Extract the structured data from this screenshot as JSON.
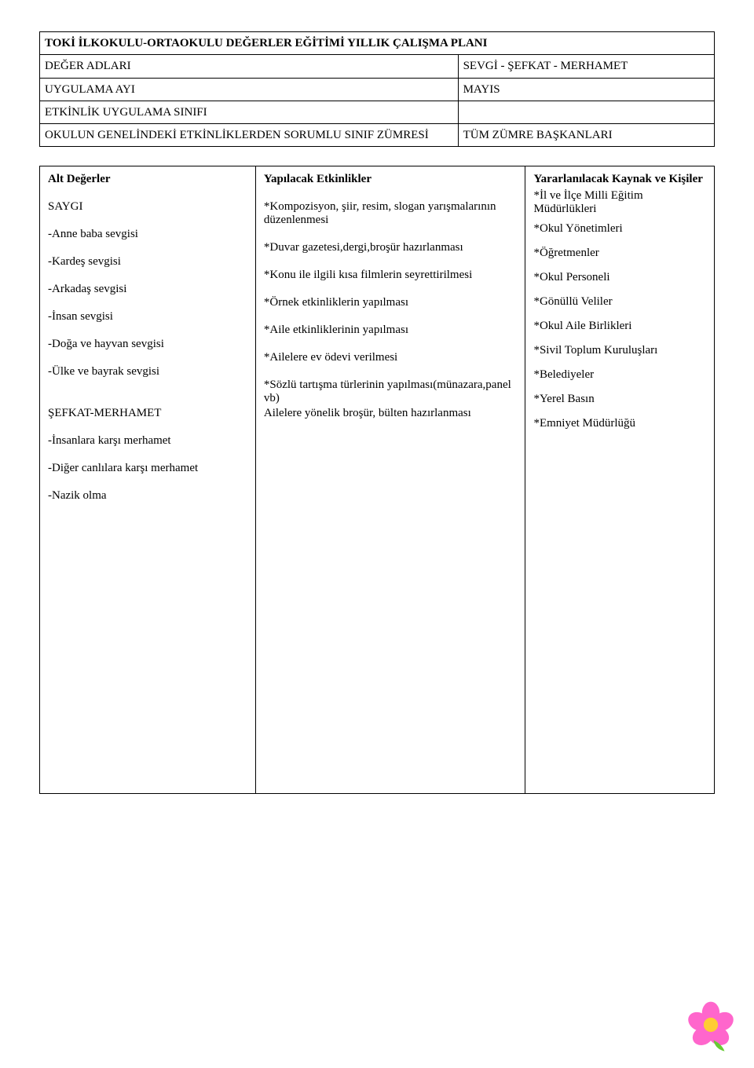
{
  "header": {
    "title": "TOKİ İLKOKULU-ORTAOKULU DEĞERLER EĞİTİMİ YILLIK ÇALIŞMA PLANI",
    "rows": [
      {
        "label": "DEĞER ADLARI",
        "value": "SEVGİ - ŞEFKAT - MERHAMET"
      },
      {
        "label": "UYGULAMA AYI",
        "value": "MAYIS"
      },
      {
        "label": "ETKİNLİK UYGULAMA SINIFI",
        "value": ""
      },
      {
        "label": "OKULUN GENELİNDEKİ ETKİNLİKLERDEN SORUMLU SINIF ZÜMRESİ",
        "value": "TÜM ZÜMRE BAŞKANLARI"
      }
    ]
  },
  "content": {
    "columns": {
      "c1": "Alt Değerler",
      "c2": "Yapılacak Etkinlikler",
      "c3": "Yararlanılacak Kaynak ve Kişiler"
    },
    "alt_degerler": {
      "group1_title": "SAYGI",
      "group1_items": [
        "-Anne baba sevgisi",
        "-Kardeş sevgisi",
        "-Arkadaş sevgisi",
        "-İnsan sevgisi",
        "-Doğa ve hayvan sevgisi",
        "-Ülke ve bayrak sevgisi"
      ],
      "group2_title": "ŞEFKAT-MERHAMET",
      "group2_items": [
        "-İnsanlara karşı merhamet",
        "-Diğer canlılara karşı merhamet",
        "-Nazik olma"
      ]
    },
    "etkinlikler": [
      "*Kompozisyon, şiir, resim, slogan yarışmalarının düzenlenmesi",
      "*Duvar gazetesi,dergi,broşür hazırlanması",
      "*Konu ile ilgili kısa filmlerin seyrettirilmesi",
      "*Örnek etkinliklerin yapılması",
      "*Aile etkinliklerinin yapılması",
      "*Ailelere ev ödevi verilmesi",
      "*Sözlü tartışma türlerinin yapılması(münazara,panel vb)",
      "Ailelere yönelik broşür, bülten hazırlanması"
    ],
    "kaynaklar": [
      "*İl ve İlçe Milli Eğitim Müdürlükleri",
      "*Okul Yönetimleri",
      "*Öğretmenler",
      "*Okul Personeli",
      "*Gönüllü Veliler",
      "*Okul Aile Birlikleri",
      "*Sivil Toplum Kuruluşları",
      "*Belediyeler",
      "*Yerel Basın",
      "*Emniyet Müdürlüğü"
    ]
  },
  "flower": {
    "petals": "#ff66cc",
    "center": "#ffcc33",
    "leaf": "#66cc33"
  }
}
